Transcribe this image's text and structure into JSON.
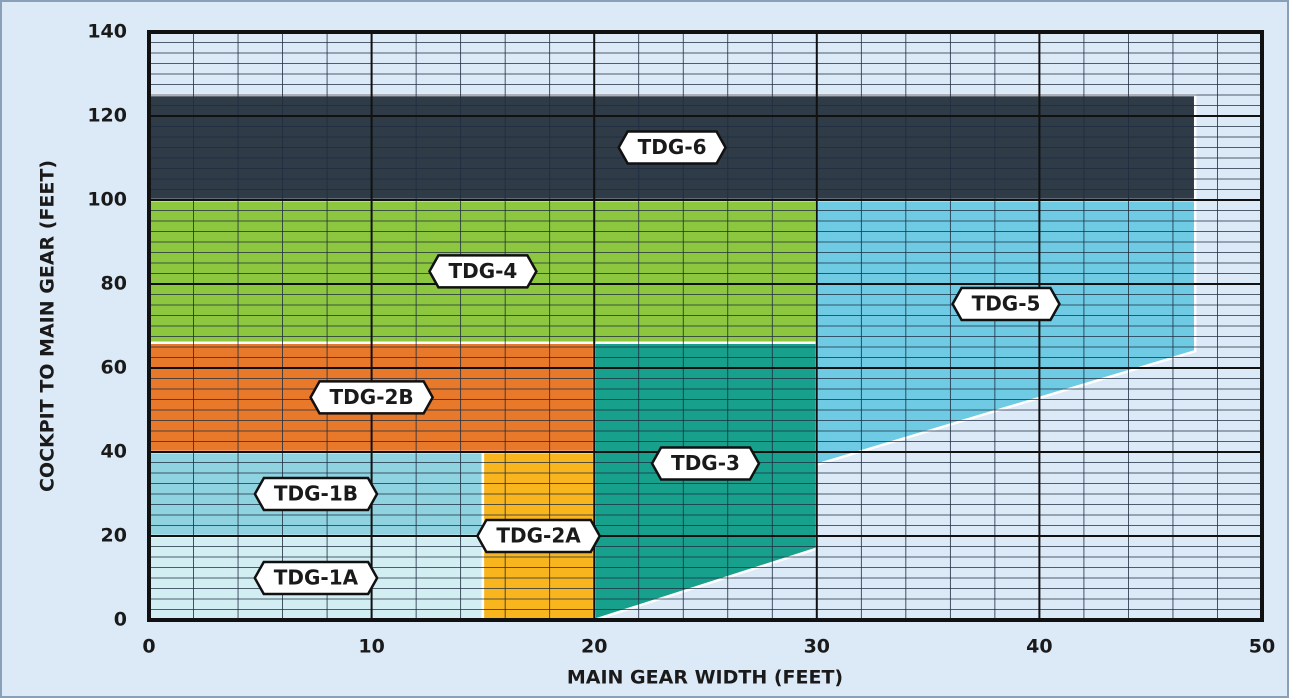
{
  "chart_data": {
    "type": "region",
    "x_label": "MAIN GEAR WIDTH (FEET)",
    "y_label": "COCKPIT TO MAIN GEAR (FEET)",
    "xlim": [
      0,
      50
    ],
    "xticks": [
      0,
      10,
      20,
      30,
      40,
      50
    ],
    "ylim": [
      0,
      140
    ],
    "yticks": [
      0,
      20,
      40,
      60,
      80,
      100,
      120,
      140
    ],
    "grid": true,
    "minor_grid": {
      "x": 2,
      "y": 2.5
    },
    "series": [
      {
        "name": "TDG-1A",
        "color": "#d2eef3",
        "x": [
          0,
          15,
          15,
          0
        ],
        "y": [
          0,
          0,
          20,
          20
        ]
      },
      {
        "name": "TDG-1B",
        "color": "#8fd3e1",
        "x": [
          0,
          15,
          15,
          0
        ],
        "y": [
          20,
          20,
          40,
          40
        ]
      },
      {
        "name": "TDG-2A",
        "color": "#f8b51e",
        "x": [
          15,
          20,
          20,
          15
        ],
        "y": [
          0,
          0,
          40,
          40
        ]
      },
      {
        "name": "TDG-2B",
        "color": "#e8782a",
        "x": [
          0,
          20,
          20,
          0
        ],
        "y": [
          40,
          40,
          66,
          66
        ]
      },
      {
        "name": "TDG-3",
        "color": "#17a08c",
        "x": [
          20,
          30,
          30,
          20
        ],
        "y": [
          0,
          17,
          66,
          66
        ]
      },
      {
        "name": "TDG-4",
        "color": "#8dc63f",
        "x": [
          0,
          30,
          30,
          0
        ],
        "y": [
          66,
          66,
          100,
          100
        ]
      },
      {
        "name": "TDG-5",
        "color": "#6ecbe3",
        "x": [
          30,
          47,
          47,
          30
        ],
        "y": [
          37,
          64,
          100,
          100
        ]
      },
      {
        "name": "TDG-6",
        "color": "#2f3b47",
        "x": [
          0,
          47,
          47,
          0
        ],
        "y": [
          100,
          100,
          125,
          125
        ]
      }
    ]
  }
}
